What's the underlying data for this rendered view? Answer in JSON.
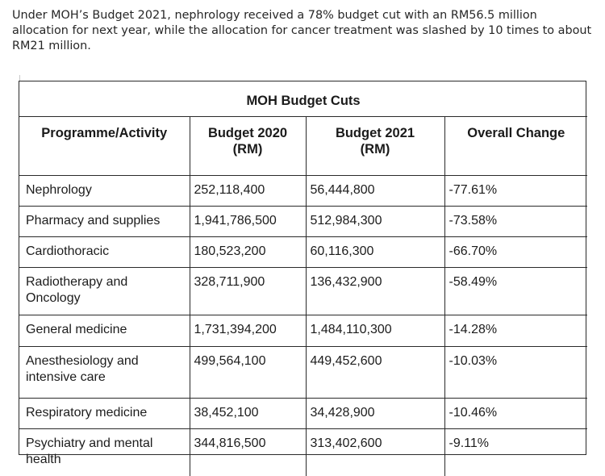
{
  "intro_text": "Under MOH’s Budget 2021, nephrology received a 78% budget cut with an RM56.5 million allocation for next year, while the allocation for cancer treatment was slashed by 10 times to about RM21 million.",
  "table": {
    "title": "MOH Budget Cuts",
    "headers": {
      "programme": "Programme/Activity",
      "budget_2020": "Budget 2020",
      "budget_2020_unit": "(RM)",
      "budget_2021": "Budget 2021",
      "budget_2021_unit": "(RM)",
      "change": "Overall Change"
    },
    "rows": [
      {
        "programme_line1": "Nephrology",
        "programme_line2": "",
        "budget_2020": "252,118,400",
        "budget_2021": "56,444,800",
        "change": "-77.61%"
      },
      {
        "programme_line1": "Pharmacy and supplies",
        "programme_line2": "",
        "budget_2020": "1,941,786,500",
        "budget_2021": "512,984,300",
        "change": "-73.58%"
      },
      {
        "programme_line1": "Cardiothoracic",
        "programme_line2": "",
        "budget_2020": "180,523,200",
        "budget_2021": "60,116,300",
        "change": "-66.70%"
      },
      {
        "programme_line1": "Radiotherapy and",
        "programme_line2": "Oncology",
        "budget_2020": "328,711,900",
        "budget_2021": "136,432,900",
        "change": "-58.49%"
      },
      {
        "programme_line1": "General medicine",
        "programme_line2": "",
        "budget_2020": "1,731,394,200",
        "budget_2021": "1,484,110,300",
        "change": "-14.28%"
      },
      {
        "programme_line1": "Anesthesiology and",
        "programme_line2": "intensive care",
        "budget_2020": "499,564,100",
        "budget_2021": "449,452,600",
        "change": "-10.03%"
      },
      {
        "programme_line1": "Respiratory medicine",
        "programme_line2": "",
        "budget_2020": "38,452,100",
        "budget_2021": "34,428,900",
        "change": "-10.46%"
      },
      {
        "programme_line1": "Psychiatry and mental",
        "programme_line2": "health",
        "budget_2020": "344,816,500",
        "budget_2021": "313,402,600",
        "change": "-9.11%"
      }
    ]
  }
}
